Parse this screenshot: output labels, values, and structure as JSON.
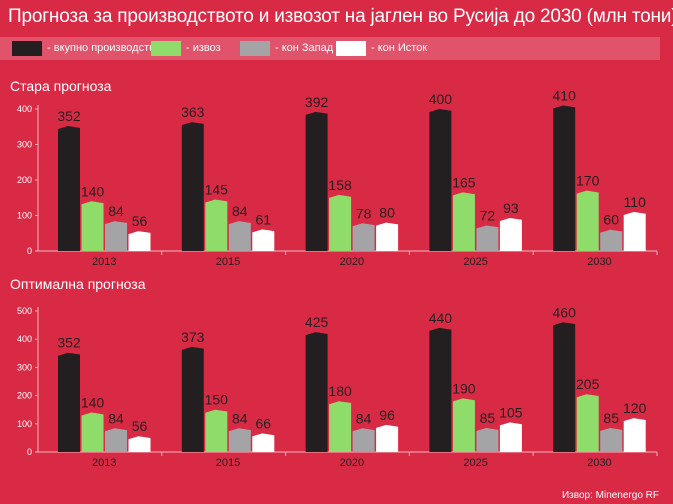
{
  "title": "Прогноза за производството и извозот на јаглен во Русија до 2030 (млн тони)",
  "legend": [
    {
      "label": "- вкупно производство",
      "color": "#231f20"
    },
    {
      "label": "- извоз",
      "color": "#8fdc6b"
    },
    {
      "label": "- кон Запад",
      "color": "#a4a4a6"
    },
    {
      "label": "- кон Исток",
      "color": "#ffffff"
    }
  ],
  "source": "Извор: Minenergo RF",
  "chart_data": [
    {
      "type": "bar",
      "title": "Стара прогноза",
      "categories": [
        "2013",
        "2015",
        "2020",
        "2025",
        "2030"
      ],
      "ylim": [
        0,
        400
      ],
      "yticks": [
        0,
        100,
        200,
        300,
        400
      ],
      "series": [
        {
          "name": "- вкупно производство",
          "color": "#231f20",
          "values": [
            352,
            363,
            392,
            400,
            410
          ]
        },
        {
          "name": "- извоз",
          "color": "#8fdc6b",
          "values": [
            140,
            145,
            158,
            165,
            170
          ]
        },
        {
          "name": "- кон Запад",
          "color": "#a4a4a6",
          "values": [
            84,
            84,
            78,
            72,
            60
          ]
        },
        {
          "name": "- кон Исток",
          "color": "#ffffff",
          "values": [
            56,
            61,
            80,
            93,
            110
          ]
        }
      ]
    },
    {
      "type": "bar",
      "title": "Оптимална прогноза",
      "categories": [
        "2013",
        "2015",
        "2020",
        "2025",
        "2030"
      ],
      "ylim": [
        0,
        500
      ],
      "yticks": [
        0,
        100,
        200,
        300,
        400,
        500
      ],
      "series": [
        {
          "name": "- вкупно производство",
          "color": "#231f20",
          "values": [
            352,
            373,
            425,
            440,
            460
          ]
        },
        {
          "name": "- извоз",
          "color": "#8fdc6b",
          "values": [
            140,
            150,
            180,
            190,
            205
          ]
        },
        {
          "name": "- кон Запад",
          "color": "#a4a4a6",
          "values": [
            84,
            84,
            84,
            85,
            85
          ]
        },
        {
          "name": "- кон Исток",
          "color": "#ffffff",
          "values": [
            56,
            66,
            96,
            105,
            120
          ]
        }
      ]
    }
  ]
}
